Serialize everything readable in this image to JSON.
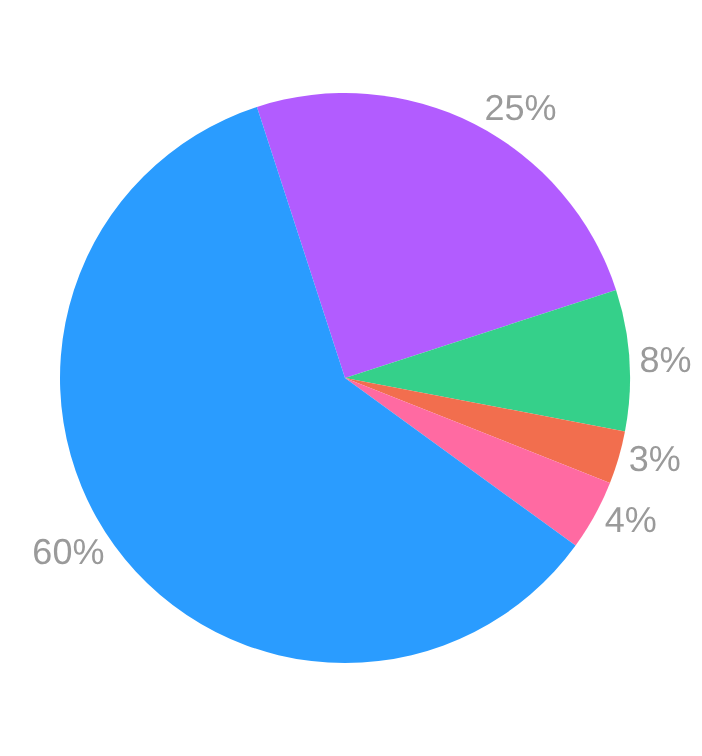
{
  "chart_data": {
    "type": "pie",
    "categories": [
      null,
      null,
      null,
      null,
      null
    ],
    "values": [
      25,
      8,
      3,
      4,
      60
    ],
    "value_labels": [
      "25%",
      "8%",
      "3%",
      "4%",
      "60%"
    ],
    "colors": [
      "#b25cff",
      "#35d08a",
      "#f26e4e",
      "#ff6aa2",
      "#2a9cff"
    ],
    "legend": false
  }
}
